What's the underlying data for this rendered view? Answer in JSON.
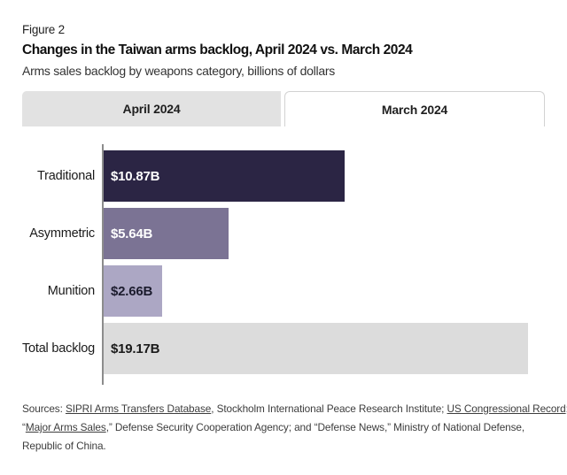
{
  "figure_label": "Figure 2",
  "title": "Changes in the Taiwan arms backlog, April 2024 vs. March 2024",
  "subtitle": "Arms sales backlog by weapons category, billions of dollars",
  "tabs": [
    {
      "label": "April 2024",
      "selected": true
    },
    {
      "label": "March 2024",
      "selected": false
    }
  ],
  "chart_data": {
    "type": "bar",
    "orientation": "horizontal",
    "title": "Changes in the Taiwan arms backlog, April 2024 vs. March 2024",
    "subtitle": "Arms sales backlog by weapons category, billions of dollars",
    "unit": "billions of dollars",
    "categories": [
      "Traditional",
      "Asymmetric",
      "Munition",
      "Total backlog"
    ],
    "values": [
      10.87,
      5.64,
      2.66,
      19.17
    ],
    "value_labels": [
      "$10.87B",
      "$5.64B",
      "$2.66B",
      "$19.17B"
    ],
    "xlim": [
      0,
      19.17
    ],
    "grid": false,
    "bar_colors": [
      "#2b2544",
      "#7b7394",
      "#aca7c4",
      "#dcdcdc"
    ],
    "value_label_colors": [
      "#ffffff",
      "#ffffff",
      "#1c1c2e",
      "#1a1a1a"
    ],
    "axis_color": "#8c8c8c"
  },
  "sources": {
    "lines": [
      [
        {
          "text": "Sources: ",
          "link": false
        },
        {
          "text": "SIPRI Arms Transfers Database",
          "link": true
        },
        {
          "text": ", Stockholm International Peace Research Institute; ",
          "link": false
        },
        {
          "text": "US Congressional Record",
          "link": true
        },
        {
          "text": ";",
          "link": false
        }
      ],
      [
        {
          "text": "“",
          "link": false
        },
        {
          "text": "Major Arms Sales",
          "link": true
        },
        {
          "text": ",” Defense Security Cooperation Agency; and “Defense News,” Ministry of National Defense,",
          "link": false
        }
      ],
      [
        {
          "text": "Republic of China.",
          "link": false
        }
      ]
    ]
  },
  "colors": {
    "selected_tab_bg": "#e2e2e2",
    "unselected_tab_border": "#d2d2d2",
    "page_bg": "#ffffff"
  }
}
